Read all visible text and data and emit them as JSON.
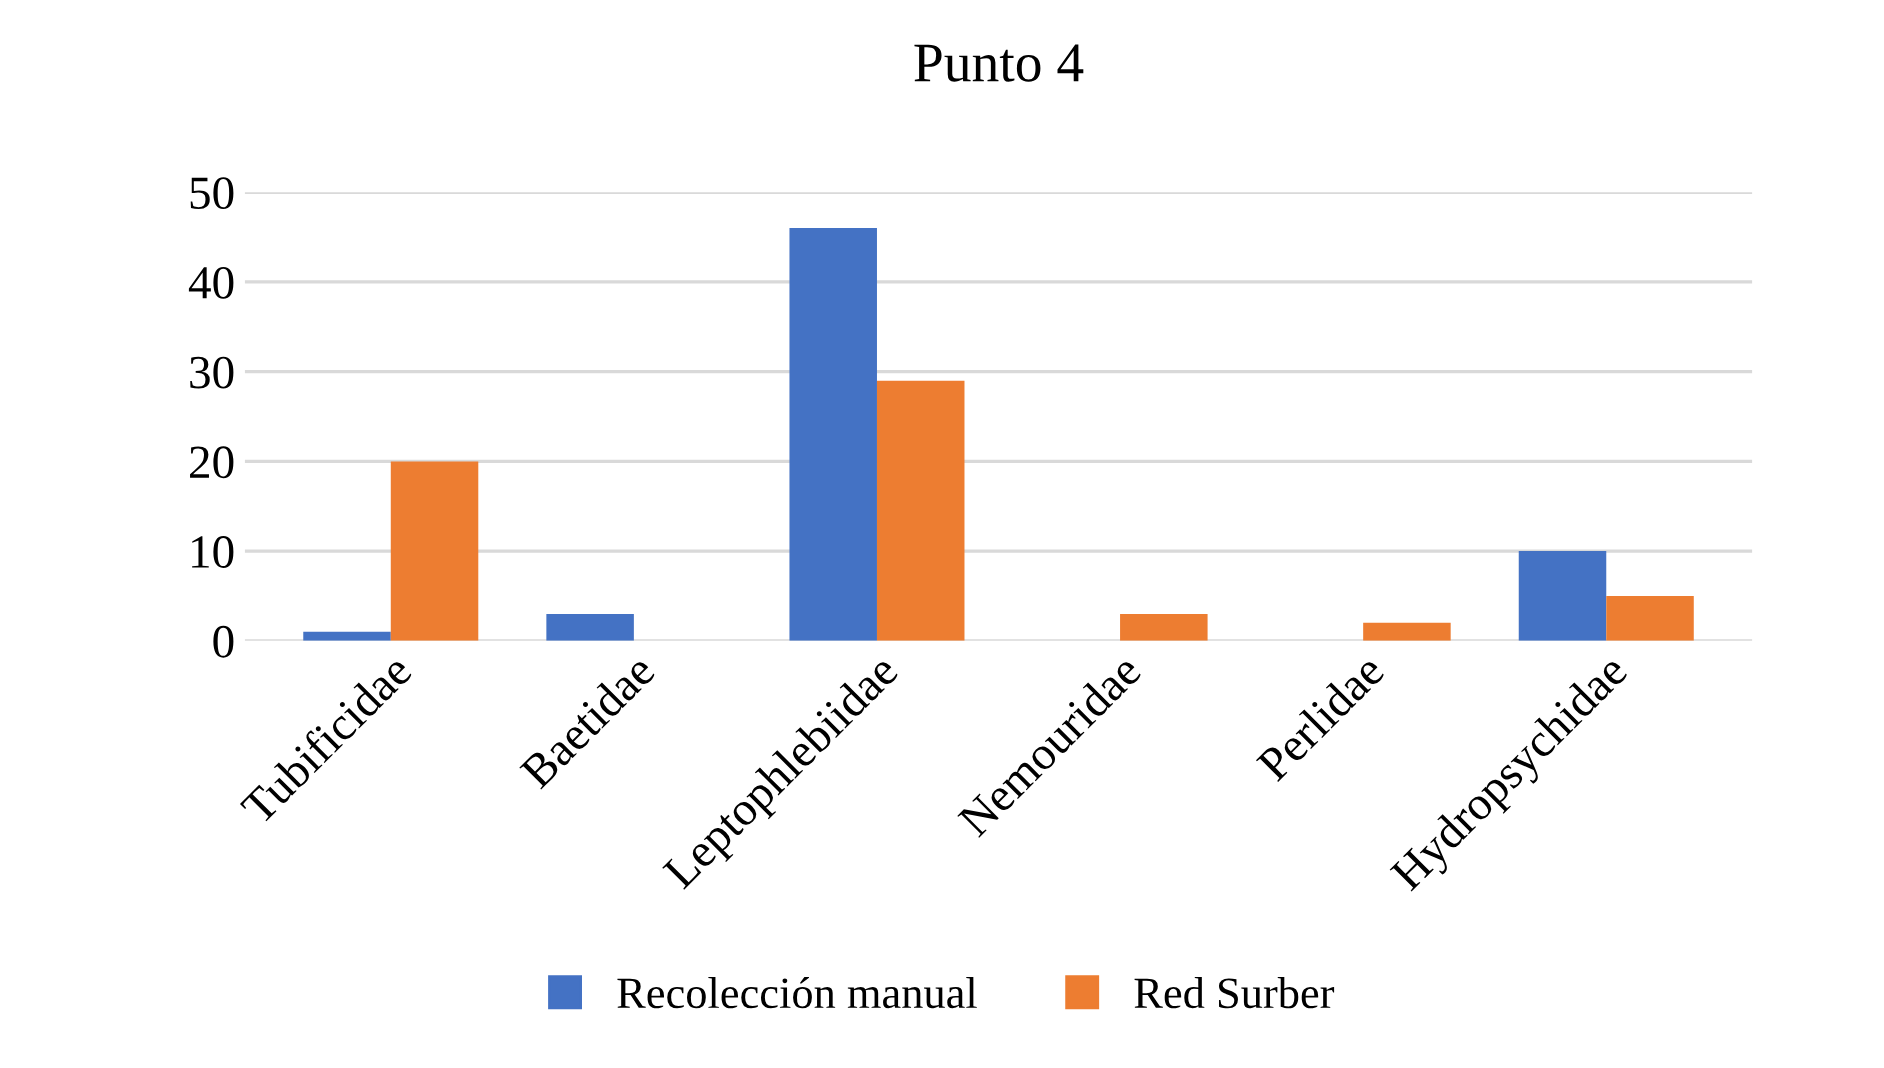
{
  "chart_data": {
    "type": "bar",
    "title": "Punto 4",
    "categories": [
      "Tubificidae",
      "Baetidae",
      "Leptophlebiidae",
      "Nemouridae",
      "Perlidae",
      "Hydropsychidae"
    ],
    "series": [
      {
        "name": "Recolección manual",
        "color": "#4472c4",
        "values": [
          1,
          3,
          46,
          0,
          0,
          10
        ]
      },
      {
        "name": "Red Surber",
        "color": "#ed7d31",
        "values": [
          20,
          0,
          29,
          3,
          2,
          5
        ]
      }
    ],
    "ylim": [
      0,
      50
    ],
    "yticks": [
      0,
      10,
      20,
      30,
      40,
      50
    ],
    "grid": "y",
    "legend": "bottom"
  }
}
